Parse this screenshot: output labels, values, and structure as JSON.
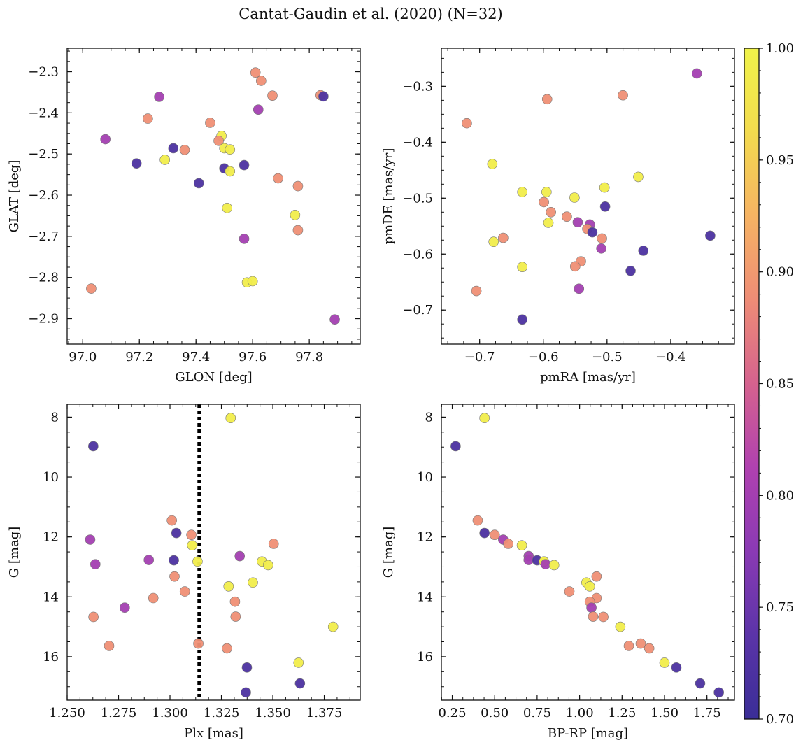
{
  "title": "Cantat-Gaudin et al. (2020) (N=32)",
  "colorbar": {
    "min": 0.7,
    "max": 1.0,
    "ticks": [
      0.7,
      0.75,
      0.8,
      0.85,
      0.9,
      0.95,
      1.0
    ],
    "tick_labels": [
      "0.70",
      "0.75",
      "0.80",
      "0.85",
      "0.90",
      "0.95",
      "1.00"
    ],
    "colormap": "plasma",
    "stops": [
      "#3a2e97",
      "#5b34a8",
      "#8a3ab4",
      "#b041b0",
      "#d5628e",
      "#ee8c76",
      "#f6b363",
      "#f3db4e",
      "#f0f34a"
    ]
  },
  "marker_edge_color": "#777777",
  "vline_color": "#000000",
  "chart_data": [
    {
      "type": "scatter",
      "xlabel": "GLON [deg]",
      "ylabel": "GLAT [deg]",
      "xlim": [
        96.945,
        97.98
      ],
      "ylim": [
        -2.962,
        -2.243
      ],
      "y_inverted": false,
      "xticks": [
        97.0,
        97.2,
        97.4,
        97.6,
        97.8
      ],
      "xtick_labels": [
        "97.0",
        "97.2",
        "97.4",
        "97.6",
        "97.8"
      ],
      "yticks": [
        -2.9,
        -2.8,
        -2.7,
        -2.6,
        -2.5,
        -2.4,
        -2.3
      ],
      "ytick_labels": [
        "−2.9",
        "−2.8",
        "−2.7",
        "−2.6",
        "−2.5",
        "−2.4",
        "−2.3"
      ],
      "x_minor": 0.05,
      "y_minor": 0.025,
      "x": [
        97.61,
        97.63,
        97.67,
        97.84,
        97.85,
        97.27,
        97.62,
        97.23,
        97.45,
        97.08,
        97.49,
        97.48,
        97.32,
        97.36,
        97.5,
        97.52,
        97.29,
        97.19,
        97.5,
        97.52,
        97.57,
        97.69,
        97.41,
        97.76,
        97.51,
        97.75,
        97.76,
        97.57,
        97.03,
        97.58,
        97.6,
        97.89
      ],
      "y": [
        -2.302,
        -2.322,
        -2.358,
        -2.357,
        -2.36,
        -2.361,
        -2.392,
        -2.414,
        -2.424,
        -2.464,
        -2.456,
        -2.468,
        -2.486,
        -2.49,
        -2.486,
        -2.489,
        -2.514,
        -2.523,
        -2.535,
        -2.542,
        -2.527,
        -2.559,
        -2.571,
        -2.578,
        -2.631,
        -2.648,
        -2.685,
        -2.706,
        -2.827,
        -2.812,
        -2.809,
        -2.902
      ],
      "c": [
        0.89,
        0.89,
        0.89,
        0.89,
        0.72,
        0.8,
        0.8,
        0.89,
        0.89,
        0.8,
        0.99,
        0.89,
        0.72,
        0.89,
        0.99,
        0.99,
        0.99,
        0.72,
        0.72,
        0.99,
        0.72,
        0.89,
        0.72,
        0.89,
        0.99,
        0.99,
        0.89,
        0.8,
        0.89,
        0.99,
        0.99,
        0.8
      ]
    },
    {
      "type": "scatter",
      "xlabel": "pmRA [mas/yr]",
      "ylabel": "pmDE [mas/yr]",
      "xlim": [
        -0.76,
        -0.3
      ],
      "ylim": [
        -0.761,
        -0.232
      ],
      "y_inverted": false,
      "xticks": [
        -0.7,
        -0.6,
        -0.5,
        -0.4
      ],
      "xtick_labels": [
        "−0.7",
        "−0.6",
        "−0.5",
        "−0.4"
      ],
      "yticks": [
        -0.7,
        -0.6,
        -0.5,
        -0.4,
        -0.3
      ],
      "ytick_labels": [
        "−0.7",
        "−0.6",
        "−0.5",
        "−0.4",
        "−0.3"
      ],
      "x_minor": 0.025,
      "y_minor": 0.025,
      "x": [
        -0.359,
        -0.475,
        -0.594,
        -0.72,
        -0.68,
        -0.451,
        -0.504,
        -0.633,
        -0.595,
        -0.551,
        -0.599,
        -0.588,
        -0.503,
        -0.563,
        -0.592,
        -0.546,
        -0.527,
        -0.531,
        -0.523,
        -0.338,
        -0.663,
        -0.678,
        -0.508,
        -0.509,
        -0.443,
        -0.541,
        -0.55,
        -0.633,
        -0.463,
        -0.544,
        -0.705,
        -0.633
      ],
      "y": [
        -0.277,
        -0.316,
        -0.323,
        -0.366,
        -0.439,
        -0.462,
        -0.481,
        -0.489,
        -0.489,
        -0.499,
        -0.507,
        -0.525,
        -0.515,
        -0.533,
        -0.544,
        -0.543,
        -0.547,
        -0.555,
        -0.561,
        -0.567,
        -0.571,
        -0.578,
        -0.572,
        -0.59,
        -0.594,
        -0.613,
        -0.622,
        -0.623,
        -0.63,
        -0.662,
        -0.666,
        -0.717
      ],
      "c": [
        0.8,
        0.89,
        0.89,
        0.89,
        0.99,
        0.99,
        0.99,
        0.99,
        0.99,
        0.99,
        0.89,
        0.89,
        0.72,
        0.89,
        0.99,
        0.8,
        0.8,
        0.89,
        0.72,
        0.72,
        0.89,
        0.99,
        0.89,
        0.8,
        0.72,
        0.89,
        0.89,
        0.99,
        0.72,
        0.8,
        0.89,
        0.72
      ]
    },
    {
      "type": "scatter",
      "xlabel": "Plx [mas]",
      "ylabel": "G [mag]",
      "xlim": [
        1.25,
        1.3925
      ],
      "ylim": [
        17.45,
        7.57
      ],
      "y_inverted": true,
      "xticks": [
        1.25,
        1.275,
        1.3,
        1.325,
        1.35,
        1.375
      ],
      "xtick_labels": [
        "1.250",
        "1.275",
        "1.300",
        "1.325",
        "1.350",
        "1.375"
      ],
      "yticks": [
        8,
        10,
        12,
        14,
        16
      ],
      "ytick_labels": [
        "8",
        "10",
        "12",
        "14",
        "16"
      ],
      "x_minor": 0.00625,
      "y_minor": 0.5,
      "vline_x": 1.3142,
      "x": [
        1.3295,
        1.2627,
        1.3009,
        1.3031,
        1.2612,
        1.3104,
        1.3504,
        1.2637,
        1.3108,
        1.3339,
        1.2897,
        1.3019,
        1.3447,
        1.3134,
        1.3477,
        1.3022,
        1.3403,
        1.3285,
        1.3072,
        1.2919,
        1.3316,
        1.278,
        1.3793,
        1.2628,
        1.3319,
        1.2704,
        1.3138,
        1.3277,
        1.3625,
        1.3374,
        1.3632,
        1.3369
      ],
      "y": [
        8.03,
        8.97,
        11.45,
        11.87,
        12.09,
        11.93,
        12.23,
        12.91,
        12.28,
        12.64,
        12.77,
        12.78,
        12.82,
        12.82,
        12.94,
        13.32,
        13.52,
        13.65,
        13.82,
        14.04,
        14.16,
        14.36,
        15.0,
        14.67,
        14.66,
        15.64,
        15.56,
        15.72,
        16.2,
        16.36,
        16.89,
        17.19
      ],
      "c": [
        0.99,
        0.72,
        0.89,
        0.72,
        0.8,
        0.89,
        0.89,
        0.8,
        0.99,
        0.8,
        0.8,
        0.72,
        0.99,
        0.99,
        0.99,
        0.89,
        0.99,
        0.99,
        0.89,
        0.89,
        0.89,
        0.8,
        0.99,
        0.89,
        0.89,
        0.89,
        0.89,
        0.89,
        0.99,
        0.72,
        0.72,
        0.72
      ]
    },
    {
      "type": "scatter",
      "xlabel": "BP-RP [mag]",
      "ylabel": "G [mag]",
      "xlim": [
        0.186,
        1.912
      ],
      "ylim": [
        17.45,
        7.57
      ],
      "y_inverted": true,
      "xticks": [
        0.25,
        0.5,
        0.75,
        1.0,
        1.25,
        1.5,
        1.75
      ],
      "xtick_labels": [
        "0.25",
        "0.50",
        "0.75",
        "1.00",
        "1.25",
        "1.50",
        "1.75"
      ],
      "x_minor": 0.0625,
      "yticks": [
        8,
        10,
        12,
        14,
        16
      ],
      "ytick_labels": [
        "8",
        "10",
        "12",
        "14",
        "16"
      ],
      "y_minor": 0.5,
      "x": [
        0.44,
        0.27,
        0.4,
        0.44,
        0.5,
        0.55,
        0.58,
        0.66,
        0.7,
        0.7,
        0.75,
        0.79,
        0.79,
        0.8,
        0.85,
        1.1,
        1.04,
        1.06,
        0.94,
        1.1,
        1.06,
        1.07,
        1.08,
        1.14,
        1.24,
        1.29,
        1.36,
        1.41,
        1.5,
        1.57,
        1.71,
        1.82
      ],
      "y": [
        8.03,
        8.97,
        11.45,
        11.87,
        11.93,
        12.09,
        12.23,
        12.28,
        12.64,
        12.77,
        12.78,
        12.82,
        12.82,
        12.91,
        12.94,
        13.32,
        13.52,
        13.65,
        13.82,
        14.04,
        14.16,
        14.36,
        14.66,
        14.67,
        15.0,
        15.64,
        15.56,
        15.72,
        16.2,
        16.36,
        16.89,
        17.19
      ],
      "c": [
        0.99,
        0.72,
        0.89,
        0.72,
        0.89,
        0.8,
        0.89,
        0.99,
        0.8,
        0.8,
        0.72,
        0.99,
        0.99,
        0.8,
        0.99,
        0.89,
        0.99,
        0.99,
        0.89,
        0.89,
        0.89,
        0.8,
        0.89,
        0.89,
        0.99,
        0.89,
        0.89,
        0.89,
        0.99,
        0.72,
        0.72,
        0.72
      ]
    }
  ]
}
